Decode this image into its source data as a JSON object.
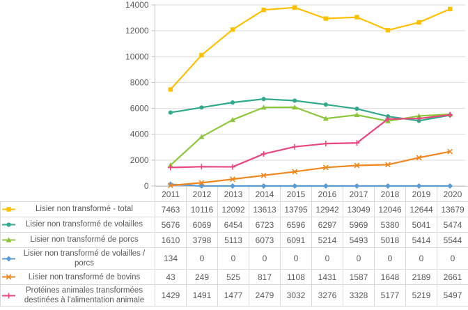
{
  "chart_data": {
    "type": "line",
    "title": "",
    "x": [
      2011,
      2012,
      2013,
      2014,
      2015,
      2016,
      2017,
      2018,
      2019,
      2020
    ],
    "y_axis": {
      "min": 0,
      "max": 14000,
      "step": 2000
    },
    "y_ticks": [
      0,
      2000,
      4000,
      6000,
      8000,
      10000,
      12000,
      14000
    ],
    "grid": true,
    "legend_position": "data-table-left-column",
    "grid_color": "#d9d9d9",
    "axis_color": "#bfbfbf",
    "text_color": "#595959",
    "series": [
      {
        "name": "Lisier non transformé - total",
        "color": "#FFC000",
        "marker": "square",
        "values": [
          7463,
          10116,
          12092,
          13613,
          13795,
          12942,
          13049,
          12046,
          12644,
          13679
        ]
      },
      {
        "name": "Lisier non transformé de volailles",
        "color": "#31A98C",
        "marker": "circle",
        "values": [
          5676,
          6069,
          6454,
          6723,
          6596,
          6297,
          5969,
          5380,
          5041,
          5474
        ]
      },
      {
        "name": "Lisier non transformé de porcs",
        "color": "#8CC63C",
        "marker": "triangle",
        "values": [
          1610,
          3798,
          5113,
          6073,
          6091,
          5214,
          5493,
          5018,
          5414,
          5544
        ]
      },
      {
        "name": "Lisier non transformé de volailles / porcs",
        "color": "#5B9BD5",
        "marker": "diamond",
        "values": [
          134,
          0,
          0,
          0,
          0,
          0,
          0,
          0,
          0,
          0
        ]
      },
      {
        "name": "Lisier non transformé de bovins",
        "color": "#F0861C",
        "marker": "x",
        "values": [
          43,
          249,
          525,
          817,
          1108,
          1431,
          1587,
          1648,
          2189,
          2661
        ]
      },
      {
        "name": "Protéines animales transformées destinées à l'alimentation animale",
        "color": "#E8457E",
        "marker": "plus",
        "values": [
          1429,
          1491,
          1477,
          2479,
          3032,
          3276,
          3328,
          5177,
          5219,
          5497
        ]
      }
    ],
    "table": {
      "corner_label": ""
    }
  }
}
